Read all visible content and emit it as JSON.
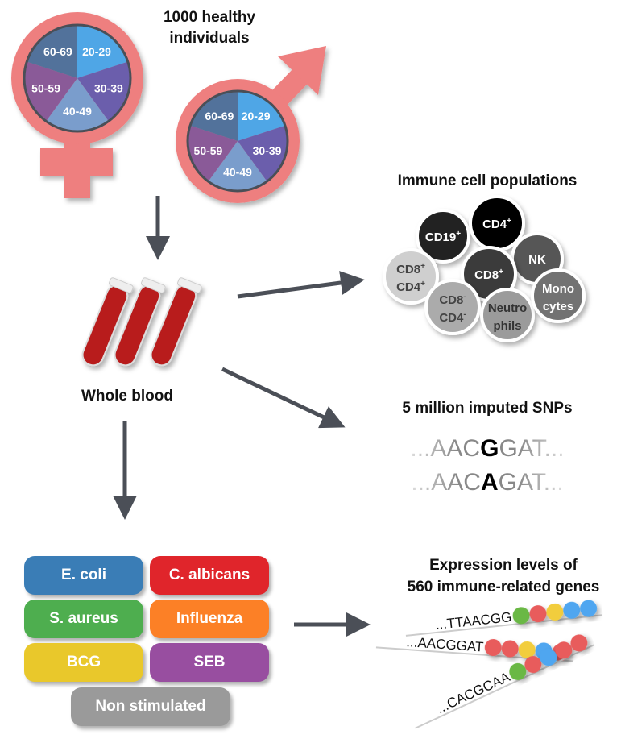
{
  "cohort": {
    "title_line1": "1000 healthy",
    "title_line2": "individuals",
    "symbol_color": "#ee7f7f",
    "age_groups": [
      {
        "label": "20-29",
        "color": "#4fa6e6"
      },
      {
        "label": "30-39",
        "color": "#6b5eac"
      },
      {
        "label": "40-49",
        "color": "#7a9dcc"
      },
      {
        "label": "50-59",
        "color": "#8a5a98"
      },
      {
        "label": "60-69",
        "color": "#52729b"
      }
    ]
  },
  "blood": {
    "label": "Whole blood",
    "tube_color": "#b81d1d"
  },
  "immune_cells": {
    "title": "Immune cell populations",
    "cells": [
      {
        "line1": "CD19",
        "sup1": "+",
        "line2": "",
        "sup2": "",
        "color": "#222222",
        "text_color": "#ffffff"
      },
      {
        "line1": "CD4",
        "sup1": "+",
        "line2": "",
        "sup2": "",
        "color": "#000000",
        "text_color": "#ffffff"
      },
      {
        "line1": "NK",
        "sup1": "",
        "line2": "",
        "sup2": "",
        "color": "#575757",
        "text_color": "#ffffff"
      },
      {
        "line1": "CD8",
        "sup1": "+",
        "line2": "CD4",
        "sup2": "+",
        "color": "#cfcfcf",
        "text_color": "#444444"
      },
      {
        "line1": "CD8",
        "sup1": "+",
        "line2": "",
        "sup2": "",
        "color": "#3a3a3a",
        "text_color": "#ffffff"
      },
      {
        "line1": "CD8",
        "sup1": "-",
        "line2": "CD4",
        "sup2": "-",
        "color": "#ababab",
        "text_color": "#444444"
      },
      {
        "line1": "Neutro",
        "sup1": "",
        "line2": "phils",
        "sup2": "",
        "color": "#9b9b9b",
        "text_color": "#333333"
      },
      {
        "line1": "Mono",
        "sup1": "",
        "line2": "cytes",
        "sup2": "",
        "color": "#727272",
        "text_color": "#ffffff"
      }
    ]
  },
  "snps": {
    "title": "5 million imputed SNPs",
    "rows": [
      {
        "prefix": "...AAC",
        "allele": "G",
        "suffix": "GAT..."
      },
      {
        "prefix": "...AAC",
        "allele": "A",
        "suffix": "GAT..."
      }
    ]
  },
  "stimuli": [
    {
      "label": "E. coli",
      "color": "#3a7db6"
    },
    {
      "label": "C. albicans",
      "color": "#e0252b"
    },
    {
      "label": "S. aureus",
      "color": "#4eae4f"
    },
    {
      "label": "Influenza",
      "color": "#fc8026"
    },
    {
      "label": "BCG",
      "color": "#e9c82b"
    },
    {
      "label": "SEB",
      "color": "#984ea0"
    },
    {
      "label": "Non stimulated",
      "color": "#9a9a9a"
    }
  ],
  "expression": {
    "title_line1": "Expression levels of",
    "title_line2": "560 immune-related genes",
    "strands": [
      {
        "sequence": "...TTAACGG",
        "beads": [
          "#6ab845",
          "#e85c5c",
          "#f2cd3c",
          "#4fa6f0",
          "#4fa6f0"
        ]
      },
      {
        "sequence": "...AACGGAT",
        "beads": [
          "#e85c5c",
          "#e85c5c",
          "#f2cd3c",
          "#4fa6f0",
          "#e85c5c"
        ]
      },
      {
        "sequence": "...CACGCAA",
        "beads": [
          "#6ab845",
          "#e85c5c",
          "#4fa6f0",
          "#e85c5c",
          "#e85c5c"
        ]
      }
    ]
  },
  "arrow_color": "#4b4f57"
}
